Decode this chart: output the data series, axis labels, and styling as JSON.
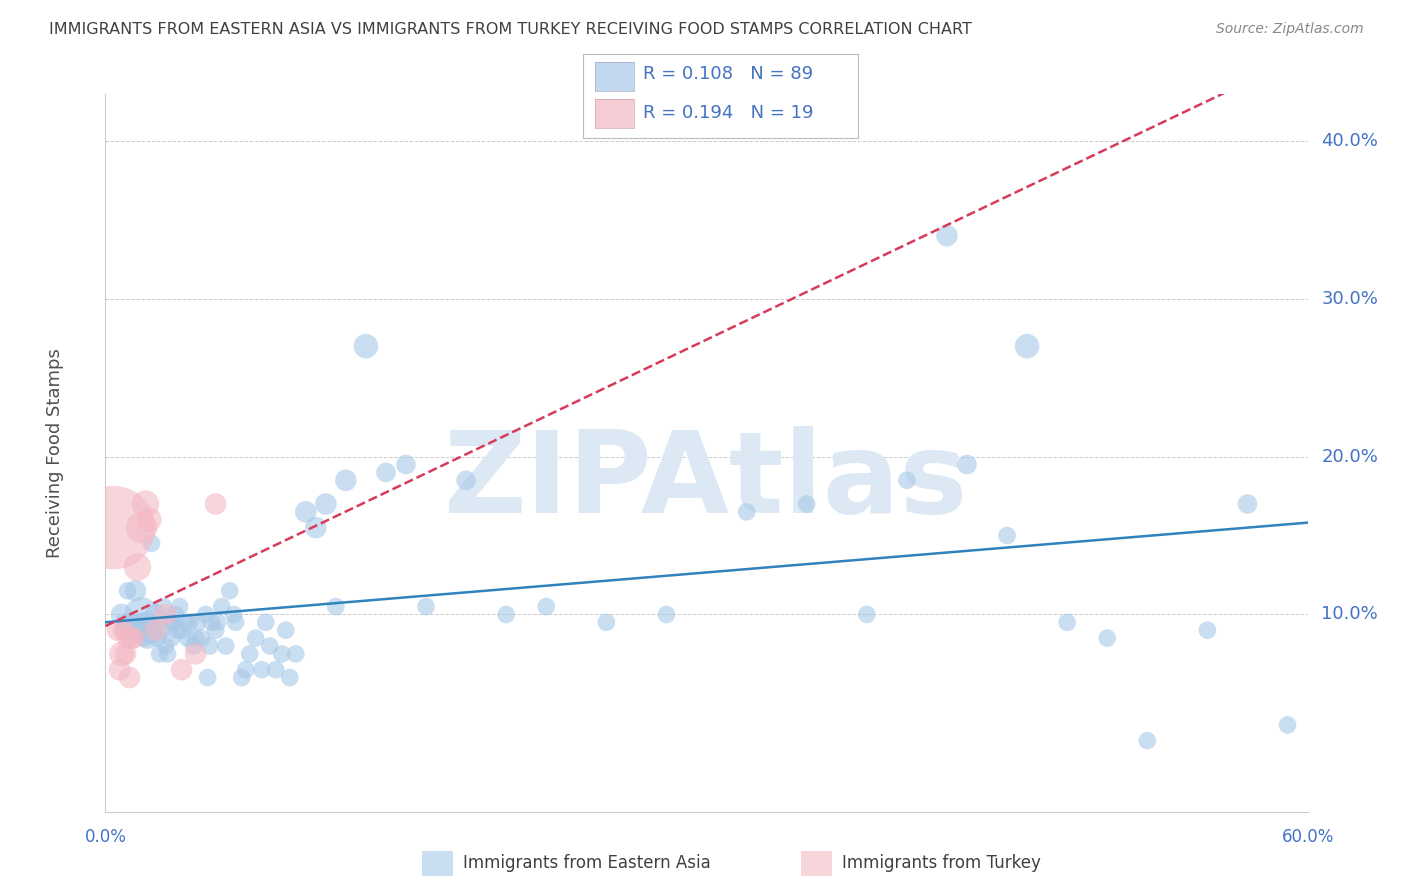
{
  "title": "IMMIGRANTS FROM EASTERN ASIA VS IMMIGRANTS FROM TURKEY RECEIVING FOOD STAMPS CORRELATION CHART",
  "source": "Source: ZipAtlas.com",
  "ylabel": "Receiving Food Stamps",
  "xlim": [
    0.0,
    0.6
  ],
  "ylim": [
    -0.025,
    0.43
  ],
  "yticks": [
    0.1,
    0.2,
    0.3,
    0.4
  ],
  "ytick_labels": [
    "10.0%",
    "20.0%",
    "30.0%",
    "40.0%"
  ],
  "legend_label1": "Immigrants from Eastern Asia",
  "legend_label2": "Immigrants from Turkey",
  "legend_R1": "R = 0.108",
  "legend_N1": "N = 89",
  "legend_R2": "R = 0.194",
  "legend_N2": "N = 19",
  "color_blue": "#a8c8e8",
  "color_pink": "#f4b8c4",
  "color_blue_line": "#3182bd",
  "color_pink_line": "#d63b5a",
  "watermark": "ZIPAtlas",
  "blue_x": [
    0.008,
    0.009,
    0.01,
    0.011,
    0.012,
    0.013,
    0.014,
    0.015,
    0.016,
    0.017,
    0.018,
    0.019,
    0.02,
    0.021,
    0.022,
    0.023,
    0.024,
    0.025,
    0.026,
    0.027,
    0.028,
    0.029,
    0.03,
    0.031,
    0.032,
    0.033,
    0.034,
    0.035,
    0.036,
    0.037,
    0.038,
    0.04,
    0.041,
    0.042,
    0.044,
    0.045,
    0.046,
    0.048,
    0.05,
    0.051,
    0.052,
    0.053,
    0.055,
    0.056,
    0.058,
    0.06,
    0.062,
    0.064,
    0.065,
    0.068,
    0.07,
    0.072,
    0.075,
    0.078,
    0.08,
    0.082,
    0.085,
    0.088,
    0.09,
    0.092,
    0.095,
    0.1,
    0.105,
    0.11,
    0.115,
    0.12,
    0.13,
    0.14,
    0.15,
    0.16,
    0.18,
    0.2,
    0.22,
    0.25,
    0.28,
    0.32,
    0.35,
    0.38,
    0.4,
    0.43,
    0.45,
    0.48,
    0.5,
    0.52,
    0.55,
    0.57,
    0.59,
    0.42,
    0.46
  ],
  "blue_y": [
    0.1,
    0.095,
    0.09,
    0.115,
    0.085,
    0.095,
    0.095,
    0.115,
    0.09,
    0.095,
    0.1,
    0.085,
    0.095,
    0.085,
    0.09,
    0.145,
    0.09,
    0.1,
    0.085,
    0.075,
    0.09,
    0.105,
    0.08,
    0.075,
    0.095,
    0.085,
    0.095,
    0.1,
    0.09,
    0.105,
    0.09,
    0.095,
    0.085,
    0.095,
    0.08,
    0.085,
    0.095,
    0.085,
    0.1,
    0.06,
    0.08,
    0.095,
    0.09,
    0.095,
    0.105,
    0.08,
    0.115,
    0.1,
    0.095,
    0.06,
    0.065,
    0.075,
    0.085,
    0.065,
    0.095,
    0.08,
    0.065,
    0.075,
    0.09,
    0.06,
    0.075,
    0.165,
    0.155,
    0.17,
    0.105,
    0.185,
    0.27,
    0.19,
    0.195,
    0.105,
    0.185,
    0.1,
    0.105,
    0.095,
    0.1,
    0.165,
    0.17,
    0.1,
    0.185,
    0.195,
    0.15,
    0.095,
    0.085,
    0.02,
    0.09,
    0.17,
    0.03,
    0.34,
    0.27
  ],
  "blue_size": [
    22,
    18,
    22,
    18,
    18,
    18,
    18,
    22,
    18,
    18,
    35,
    18,
    22,
    22,
    28,
    18,
    18,
    22,
    18,
    18,
    18,
    18,
    18,
    18,
    18,
    18,
    18,
    18,
    18,
    18,
    18,
    18,
    18,
    18,
    18,
    18,
    18,
    18,
    18,
    18,
    18,
    18,
    18,
    18,
    18,
    18,
    18,
    18,
    18,
    18,
    18,
    18,
    18,
    18,
    18,
    18,
    18,
    18,
    18,
    18,
    18,
    22,
    22,
    22,
    18,
    22,
    25,
    20,
    20,
    18,
    20,
    18,
    18,
    18,
    18,
    18,
    18,
    18,
    18,
    20,
    18,
    18,
    18,
    18,
    18,
    20,
    18,
    22,
    25
  ],
  "pink_x": [
    0.004,
    0.006,
    0.007,
    0.008,
    0.009,
    0.01,
    0.011,
    0.012,
    0.013,
    0.014,
    0.016,
    0.018,
    0.02,
    0.022,
    0.025,
    0.03,
    0.038,
    0.045,
    0.055
  ],
  "pink_y": [
    0.155,
    0.09,
    0.065,
    0.075,
    0.09,
    0.075,
    0.085,
    0.06,
    0.085,
    0.085,
    0.13,
    0.155,
    0.17,
    0.16,
    0.09,
    0.1,
    0.065,
    0.075,
    0.17
  ],
  "pink_size": [
    85,
    22,
    22,
    25,
    22,
    22,
    22,
    22,
    22,
    22,
    28,
    32,
    28,
    25,
    22,
    22,
    22,
    22,
    22
  ],
  "grid_color": "#cccccc",
  "background_color": "#ffffff",
  "title_color": "#404040",
  "axis_color": "#4472c4",
  "watermark_color": "#dce9f5"
}
